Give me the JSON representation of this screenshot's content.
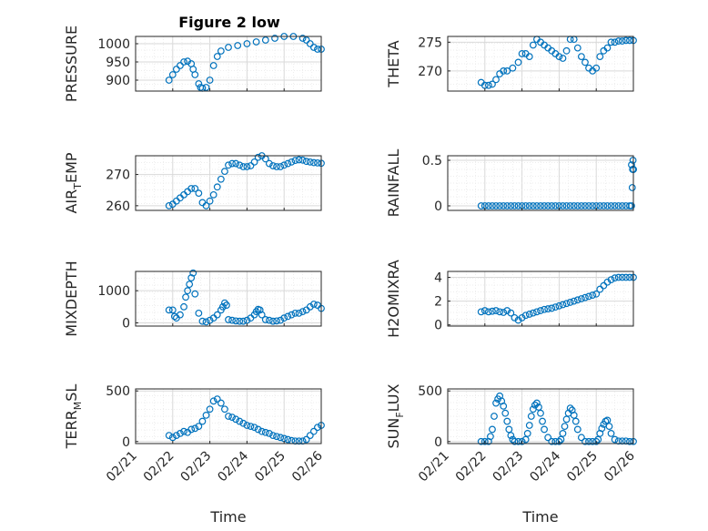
{
  "figure": {
    "title": "Figure 2 low",
    "marker_color": "#0072BD",
    "x_tick_labels": [
      "02/21",
      "02/22",
      "02/23",
      "02/24",
      "02/25",
      "02/26"
    ]
  },
  "chart_data": [
    {
      "type": "scatter",
      "ylabel_main": "PRESSURE",
      "ylabel_sub": "",
      "ylabel_tail": "",
      "xlabel": "",
      "xlim": [
        0,
        5
      ],
      "ylim": [
        870,
        1020
      ],
      "yticks": [
        900,
        950,
        1000
      ],
      "grid": true,
      "x": [
        0.9,
        1.0,
        1.1,
        1.2,
        1.3,
        1.4,
        1.5,
        1.55,
        1.6,
        1.7,
        1.75,
        1.8,
        1.9,
        2.0,
        2.1,
        2.2,
        2.3,
        2.5,
        2.75,
        3.0,
        3.25,
        3.5,
        3.75,
        4.0,
        4.25,
        4.5,
        4.6,
        4.7,
        4.8,
        4.9,
        5.0
      ],
      "y": [
        900,
        915,
        930,
        940,
        950,
        952,
        945,
        930,
        915,
        890,
        880,
        878,
        880,
        900,
        940,
        965,
        980,
        990,
        995,
        1000,
        1005,
        1010,
        1015,
        1020,
        1020,
        1015,
        1010,
        1000,
        990,
        985,
        985
      ]
    },
    {
      "type": "scatter",
      "ylabel_main": "THETA",
      "ylabel_sub": "",
      "ylabel_tail": "",
      "xlabel": "",
      "xlim": [
        0,
        5
      ],
      "ylim": [
        266.5,
        276
      ],
      "yticks": [
        270,
        275
      ],
      "grid": true,
      "x": [
        0.9,
        1.0,
        1.1,
        1.2,
        1.3,
        1.4,
        1.5,
        1.6,
        1.75,
        1.9,
        2.0,
        2.1,
        2.2,
        2.3,
        2.4,
        2.5,
        2.6,
        2.7,
        2.8,
        2.9,
        3.0,
        3.1,
        3.2,
        3.3,
        3.4,
        3.5,
        3.6,
        3.7,
        3.8,
        3.9,
        4.0,
        4.1,
        4.2,
        4.3,
        4.4,
        4.5,
        4.6,
        4.7,
        4.8,
        4.9,
        5.0
      ],
      "y": [
        268,
        267.5,
        267.5,
        267.7,
        268.5,
        269.5,
        270,
        270,
        270.5,
        271.5,
        273,
        273,
        272.5,
        274.5,
        275.5,
        275,
        274.5,
        274,
        273.5,
        273,
        272.5,
        272.2,
        273.5,
        275.5,
        275.5,
        274,
        272.5,
        271.5,
        270.5,
        270,
        270.5,
        272.5,
        273.5,
        274,
        275,
        275,
        275.2,
        275.2,
        275.3,
        275.3,
        275.3
      ]
    },
    {
      "type": "scatter",
      "ylabel_main": "AIR",
      "ylabel_sub": "T",
      "ylabel_tail": "EMP",
      "xlabel": "",
      "xlim": [
        0,
        5
      ],
      "ylim": [
        258.5,
        276
      ],
      "yticks": [
        260,
        270
      ],
      "grid": true,
      "x": [
        0.9,
        1.0,
        1.1,
        1.2,
        1.3,
        1.4,
        1.5,
        1.6,
        1.7,
        1.8,
        1.9,
        2.0,
        2.1,
        2.2,
        2.3,
        2.4,
        2.5,
        2.6,
        2.7,
        2.8,
        2.9,
        3.0,
        3.1,
        3.2,
        3.3,
        3.4,
        3.5,
        3.6,
        3.7,
        3.8,
        3.9,
        4.0,
        4.1,
        4.2,
        4.3,
        4.4,
        4.5,
        4.6,
        4.7,
        4.8,
        4.9,
        5.0
      ],
      "y": [
        260,
        260.5,
        261.5,
        262.5,
        263.5,
        264.5,
        265.5,
        265.5,
        264,
        261,
        260,
        261.5,
        263.5,
        266,
        268.5,
        271,
        273,
        273.5,
        273.5,
        273,
        272.5,
        272.5,
        272.8,
        274,
        275.5,
        276,
        275,
        273.5,
        272.8,
        272.5,
        272.5,
        273,
        273.5,
        274,
        274.5,
        274.7,
        274.6,
        274.2,
        274,
        273.8,
        273.7,
        273.6
      ]
    },
    {
      "type": "scatter",
      "ylabel_main": "RAINFALL",
      "ylabel_sub": "",
      "ylabel_tail": "",
      "xlabel": "",
      "xlim": [
        0,
        5
      ],
      "ylim": [
        -0.05,
        0.55
      ],
      "yticks": [
        0,
        0.5
      ],
      "grid": true,
      "x": [
        0.9,
        1.0,
        1.1,
        1.2,
        1.3,
        1.4,
        1.5,
        1.6,
        1.7,
        1.8,
        1.9,
        2.0,
        2.1,
        2.2,
        2.3,
        2.4,
        2.5,
        2.6,
        2.7,
        2.8,
        2.9,
        3.0,
        3.1,
        3.2,
        3.3,
        3.4,
        3.5,
        3.6,
        3.7,
        3.8,
        3.9,
        4.0,
        4.1,
        4.2,
        4.3,
        4.4,
        4.5,
        4.6,
        4.7,
        4.8,
        4.9,
        4.95,
        4.97,
        4.98,
        4.99,
        5.0,
        5.0,
        4.95
      ],
      "y": [
        0,
        0,
        0,
        0,
        0,
        0,
        0,
        0,
        0,
        0,
        0,
        0,
        0,
        0,
        0,
        0,
        0,
        0,
        0,
        0,
        0,
        0,
        0,
        0,
        0,
        0,
        0,
        0,
        0,
        0,
        0,
        0,
        0,
        0,
        0,
        0,
        0,
        0,
        0,
        0,
        0,
        0,
        0.2,
        0.4,
        0.5,
        0.4,
        0.4,
        0.45
      ]
    },
    {
      "type": "scatter",
      "ylabel_main": "MIXDEPTH",
      "ylabel_sub": "",
      "ylabel_tail": "",
      "xlabel": "",
      "xlim": [
        0,
        5
      ],
      "ylim": [
        -100,
        1600
      ],
      "yticks": [
        0,
        1000
      ],
      "grid": true,
      "x": [
        0.9,
        1.0,
        1.05,
        1.1,
        1.2,
        1.3,
        1.35,
        1.4,
        1.45,
        1.5,
        1.55,
        1.6,
        1.7,
        1.8,
        1.9,
        2.0,
        2.1,
        2.2,
        2.3,
        2.35,
        2.4,
        2.45,
        2.5,
        2.6,
        2.7,
        2.8,
        2.9,
        3.0,
        3.1,
        3.2,
        3.25,
        3.3,
        3.35,
        3.4,
        3.5,
        3.6,
        3.7,
        3.8,
        3.9,
        4.0,
        4.1,
        4.2,
        4.3,
        4.4,
        4.5,
        4.6,
        4.7,
        4.8,
        4.9,
        5.0
      ],
      "y": [
        400,
        400,
        200,
        150,
        250,
        500,
        800,
        1000,
        1200,
        1400,
        1550,
        900,
        300,
        50,
        30,
        80,
        150,
        250,
        400,
        500,
        620,
        550,
        100,
        80,
        60,
        50,
        50,
        80,
        150,
        250,
        350,
        420,
        400,
        250,
        100,
        80,
        50,
        60,
        80,
        150,
        200,
        250,
        300,
        300,
        350,
        400,
        500,
        580,
        550,
        450
      ]
    },
    {
      "type": "scatter",
      "ylabel_main": "H2OMIXRA",
      "ylabel_sub": "",
      "ylabel_tail": "",
      "xlabel": "",
      "xlim": [
        0,
        5
      ],
      "ylim": [
        -0.1,
        4.5
      ],
      "yticks": [
        0,
        2,
        4
      ],
      "grid": true,
      "x": [
        0.9,
        1.0,
        1.1,
        1.2,
        1.3,
        1.4,
        1.5,
        1.6,
        1.7,
        1.8,
        1.9,
        2.0,
        2.1,
        2.2,
        2.3,
        2.4,
        2.5,
        2.6,
        2.7,
        2.8,
        2.9,
        3.0,
        3.1,
        3.2,
        3.3,
        3.4,
        3.5,
        3.6,
        3.7,
        3.8,
        3.9,
        4.0,
        4.1,
        4.2,
        4.3,
        4.4,
        4.5,
        4.6,
        4.7,
        4.8,
        4.9,
        5.0
      ],
      "y": [
        1.1,
        1.2,
        1.1,
        1.15,
        1.2,
        1.1,
        1.05,
        1.2,
        1.0,
        0.6,
        0.4,
        0.6,
        0.8,
        0.9,
        1.0,
        1.1,
        1.2,
        1.3,
        1.35,
        1.4,
        1.5,
        1.6,
        1.7,
        1.8,
        1.9,
        2.0,
        2.1,
        2.2,
        2.3,
        2.4,
        2.5,
        2.6,
        3.0,
        3.3,
        3.6,
        3.8,
        3.95,
        4.0,
        4.0,
        4.0,
        4.0,
        4.0
      ]
    },
    {
      "type": "scatter",
      "ylabel_main": "TERR",
      "ylabel_sub": "M",
      "ylabel_tail": "SL",
      "xlabel": "Time",
      "xlim": [
        0,
        5
      ],
      "ylim": [
        -20,
        520
      ],
      "yticks": [
        0,
        500
      ],
      "grid": true,
      "x": [
        0.9,
        1.0,
        1.1,
        1.2,
        1.3,
        1.4,
        1.5,
        1.6,
        1.7,
        1.8,
        1.9,
        2.0,
        2.1,
        2.2,
        2.3,
        2.4,
        2.5,
        2.6,
        2.7,
        2.8,
        2.9,
        3.0,
        3.1,
        3.2,
        3.3,
        3.4,
        3.5,
        3.6,
        3.7,
        3.8,
        3.9,
        4.0,
        4.1,
        4.2,
        4.3,
        4.4,
        4.5,
        4.6,
        4.7,
        4.8,
        4.9,
        5.0
      ],
      "y": [
        60,
        40,
        60,
        80,
        100,
        90,
        120,
        130,
        150,
        200,
        260,
        320,
        400,
        420,
        380,
        320,
        250,
        240,
        220,
        200,
        180,
        160,
        150,
        140,
        120,
        100,
        90,
        80,
        60,
        50,
        40,
        30,
        20,
        10,
        5,
        5,
        5,
        20,
        60,
        100,
        140,
        160
      ]
    },
    {
      "type": "scatter",
      "ylabel_main": "SUN",
      "ylabel_sub": "F",
      "ylabel_tail": "LUX",
      "xlabel": "Time",
      "xlim": [
        0,
        5
      ],
      "ylim": [
        -20,
        520
      ],
      "yticks": [
        0,
        500
      ],
      "grid": true,
      "x": [
        0.9,
        1.0,
        1.1,
        1.15,
        1.2,
        1.25,
        1.3,
        1.35,
        1.4,
        1.45,
        1.5,
        1.55,
        1.6,
        1.65,
        1.7,
        1.75,
        1.8,
        1.9,
        2.0,
        2.1,
        2.15,
        2.2,
        2.25,
        2.3,
        2.35,
        2.4,
        2.45,
        2.5,
        2.55,
        2.6,
        2.7,
        2.8,
        2.9,
        3.0,
        3.05,
        3.1,
        3.15,
        3.2,
        3.25,
        3.3,
        3.35,
        3.4,
        3.45,
        3.5,
        3.6,
        3.7,
        3.8,
        3.9,
        4.0,
        4.05,
        4.1,
        4.15,
        4.2,
        4.25,
        4.3,
        4.35,
        4.4,
        4.5,
        4.6,
        4.7,
        4.8,
        4.9,
        5.0
      ],
      "y": [
        0,
        0,
        0,
        50,
        120,
        250,
        380,
        420,
        450,
        400,
        350,
        280,
        200,
        120,
        60,
        20,
        0,
        0,
        0,
        20,
        80,
        160,
        250,
        320,
        360,
        380,
        340,
        280,
        200,
        120,
        40,
        0,
        0,
        0,
        20,
        80,
        150,
        220,
        280,
        330,
        310,
        260,
        200,
        120,
        40,
        0,
        0,
        0,
        0,
        20,
        80,
        130,
        170,
        200,
        210,
        150,
        80,
        20,
        5,
        5,
        5,
        0,
        0
      ]
    }
  ]
}
